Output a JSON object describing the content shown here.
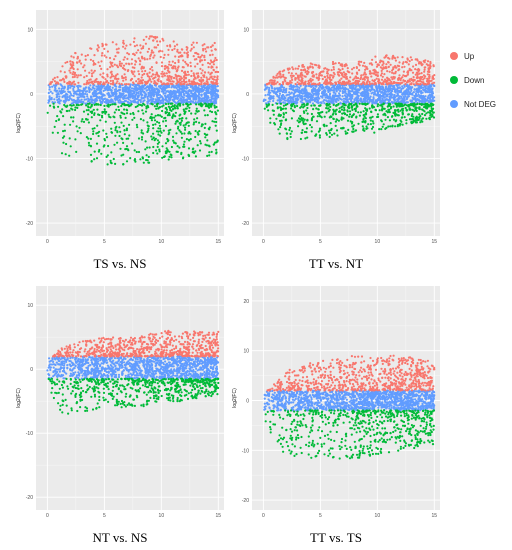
{
  "legend": {
    "items": [
      {
        "label": "Up",
        "color": "#F8766D"
      },
      {
        "label": "Down",
        "color": "#00BA38"
      },
      {
        "label": "Not DEG",
        "color": "#619CFF"
      }
    ]
  },
  "chart_data": [
    {
      "type": "scatter",
      "title": "TS vs. NS",
      "xlabel": "",
      "ylabel": "log2(FC)",
      "xlim": [
        -1,
        15.5
      ],
      "ylim": [
        -22,
        13
      ],
      "xticks": [
        "0",
        "5",
        "10",
        "15"
      ],
      "yticks": [
        "-20",
        "-10",
        "0",
        "10"
      ],
      "grid": true,
      "series": [
        {
          "name": "Up",
          "color": "#F8766D",
          "upper_envelope": {
            "x": [
              0,
              1,
              2,
              3,
              5,
              8,
              10,
              12,
              15
            ],
            "y": [
              1,
              4,
              6,
              7,
              8,
              9,
              9,
              8,
              8
            ]
          }
        },
        {
          "name": "Down",
          "color": "#00BA38",
          "lower_envelope": {
            "x": [
              0,
              1,
              2,
              5,
              8,
              10,
              12,
              15
            ],
            "y": [
              -4,
              -9,
              -10,
              -11,
              -11,
              -11,
              -10,
              -10
            ]
          }
        },
        {
          "name": "Not DEG",
          "color": "#619CFF",
          "band": [
            -1.5,
            1.5
          ]
        }
      ]
    },
    {
      "type": "scatter",
      "title": "TT vs. NT",
      "xlabel": "",
      "ylabel": "log2(FC)",
      "xlim": [
        -1,
        15.5
      ],
      "ylim": [
        -22,
        13
      ],
      "xticks": [
        "0",
        "5",
        "10",
        "15"
      ],
      "yticks": [
        "-20",
        "-10",
        "0",
        "10"
      ],
      "grid": true,
      "series": [
        {
          "name": "Up",
          "color": "#F8766D",
          "upper_envelope": {
            "x": [
              0,
              1,
              2,
              5,
              8,
              10,
              12,
              15
            ],
            "y": [
              1,
              3,
              4,
              5,
              5,
              6,
              6,
              5
            ]
          }
        },
        {
          "name": "Down",
          "color": "#00BA38",
          "lower_envelope": {
            "x": [
              0,
              1,
              2,
              5,
              8,
              10,
              12,
              15
            ],
            "y": [
              -3,
              -6,
              -7,
              -7,
              -6,
              -6,
              -5,
              -4
            ]
          }
        },
        {
          "name": "Not DEG",
          "color": "#619CFF",
          "band": [
            -1.5,
            1.5
          ]
        }
      ]
    },
    {
      "type": "scatter",
      "title": "NT vs. NS",
      "xlabel": "",
      "ylabel": "log2(FC)",
      "xlim": [
        -1,
        15.5
      ],
      "ylim": [
        -22,
        13
      ],
      "xticks": [
        "0",
        "5",
        "10",
        "15"
      ],
      "yticks": [
        "-20",
        "-10",
        "0",
        "10"
      ],
      "grid": true,
      "series": [
        {
          "name": "Up",
          "color": "#F8766D",
          "upper_envelope": {
            "x": [
              0,
              1,
              2,
              5,
              8,
              10,
              12,
              15
            ],
            "y": [
              1,
              3,
              4,
              5,
              5,
              6,
              6,
              6
            ]
          }
        },
        {
          "name": "Down",
          "color": "#00BA38",
          "lower_envelope": {
            "x": [
              0,
              1,
              2,
              5,
              8,
              10,
              12,
              15
            ],
            "y": [
              -3,
              -7,
              -7,
              -6,
              -6,
              -5,
              -5,
              -4
            ]
          }
        },
        {
          "name": "Not DEG",
          "color": "#619CFF",
          "band": [
            -1.5,
            2
          ]
        }
      ]
    },
    {
      "type": "scatter",
      "title": "TT vs. TS",
      "xlabel": "",
      "ylabel": "log2(FC)",
      "xlim": [
        -1,
        15.5
      ],
      "ylim": [
        -22,
        23
      ],
      "xticks": [
        "0",
        "5",
        "10",
        "15"
      ],
      "yticks": [
        "-20",
        "-10",
        "0",
        "10",
        "20"
      ],
      "grid": true,
      "series": [
        {
          "name": "Up",
          "color": "#F8766D",
          "upper_envelope": {
            "x": [
              0,
              1,
              2,
              3,
              5,
              8,
              10,
              12,
              15
            ],
            "y": [
              1,
              4,
              6,
              7,
              8,
              9,
              9,
              9,
              8
            ]
          }
        },
        {
          "name": "Down",
          "color": "#00BA38",
          "lower_envelope": {
            "x": [
              0,
              1,
              2,
              5,
              8,
              10,
              12,
              15
            ],
            "y": [
              -5,
              -10,
              -11,
              -12,
              -12,
              -11,
              -10,
              -9
            ]
          }
        },
        {
          "name": "Not DEG",
          "color": "#619CFF",
          "band": [
            -2,
            2
          ]
        }
      ]
    }
  ]
}
